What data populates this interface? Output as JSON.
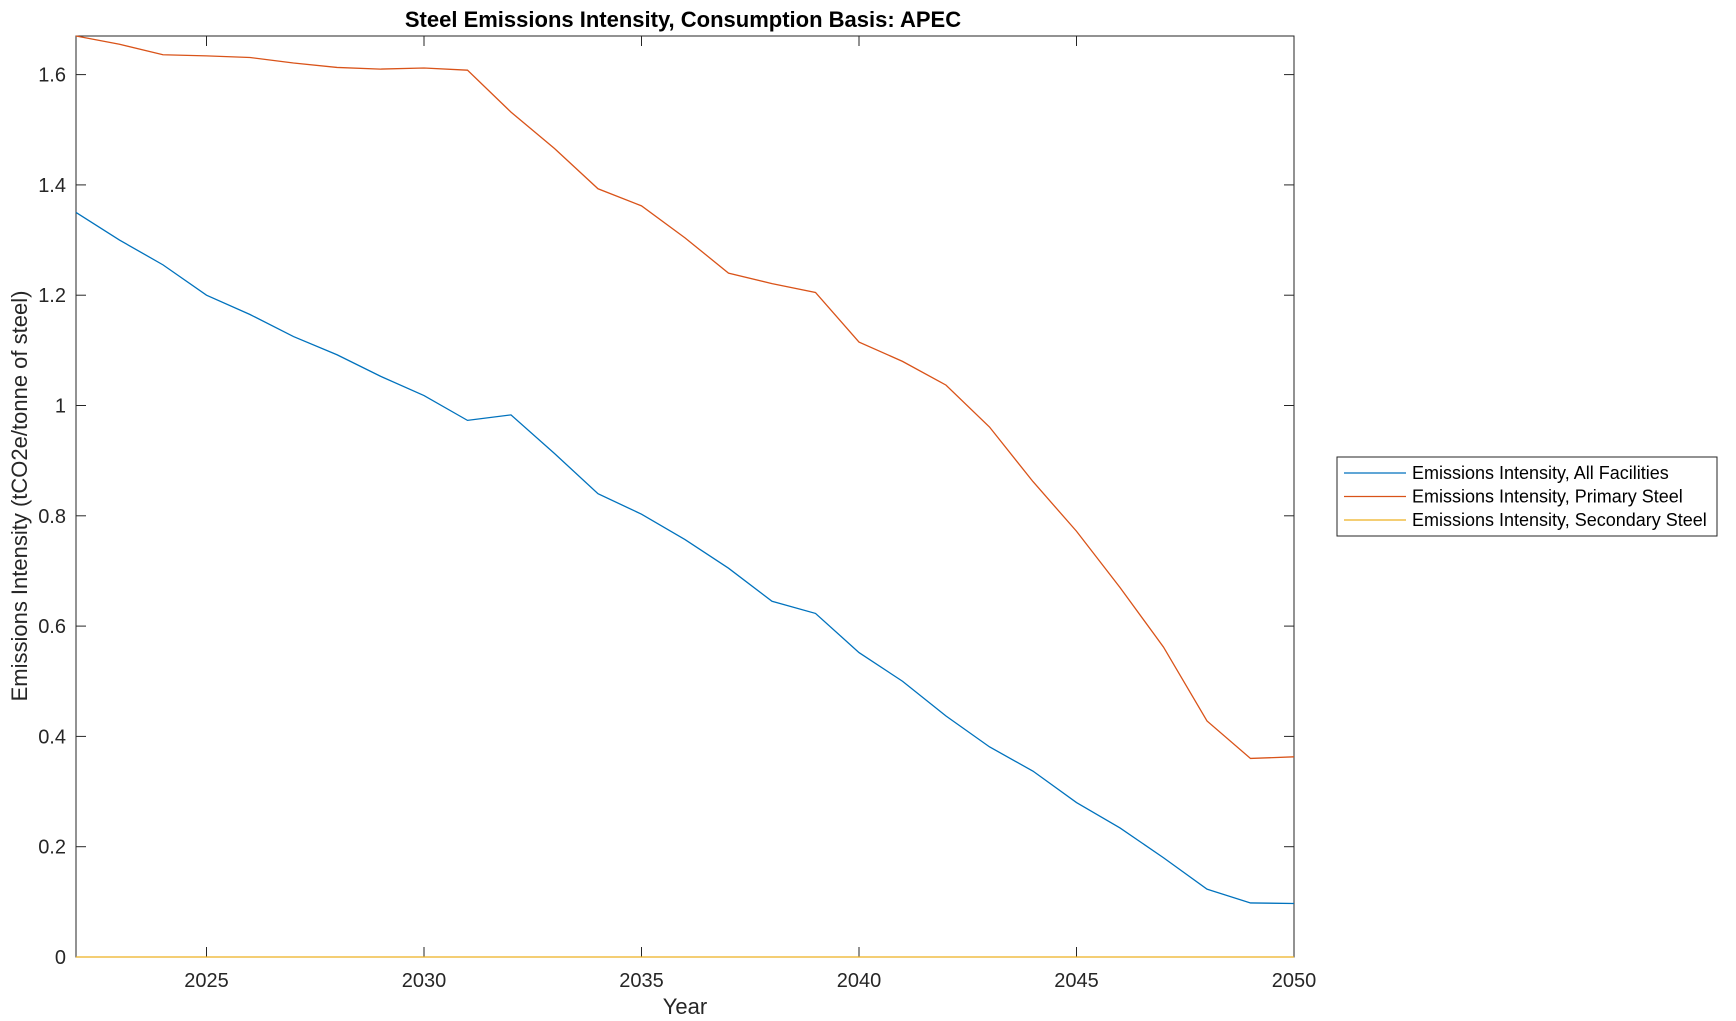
{
  "chart_data": {
    "type": "line",
    "title": "Steel Emissions Intensity, Consumption Basis: APEC",
    "xlabel": "Year",
    "ylabel": "Emissions Intensity (tCO2e/tonne of steel)",
    "xlim": [
      2022,
      2050
    ],
    "ylim": [
      0,
      1.67
    ],
    "xticks": [
      "2025",
      "2030",
      "2035",
      "2040",
      "2045",
      "2050"
    ],
    "yticks": [
      "0",
      "0.2",
      "0.4",
      "0.6",
      "0.8",
      "1",
      "1.2",
      "1.4",
      "1.6"
    ],
    "grid": false,
    "legend_position": "outside-right",
    "x": [
      2022,
      2023,
      2024,
      2025,
      2026,
      2027,
      2028,
      2029,
      2030,
      2031,
      2032,
      2033,
      2034,
      2035,
      2036,
      2037,
      2038,
      2039,
      2040,
      2041,
      2042,
      2043,
      2044,
      2045,
      2046,
      2047,
      2048,
      2049,
      2050
    ],
    "series": [
      {
        "name": "Emissions Intensity, All Facilities",
        "color": "#0072BD",
        "values": [
          1.35,
          1.3,
          1.255,
          1.2,
          1.165,
          1.125,
          1.092,
          1.053,
          1.018,
          0.973,
          0.983,
          0.913,
          0.84,
          0.803,
          0.757,
          0.705,
          0.645,
          0.623,
          0.552,
          0.5,
          0.437,
          0.381,
          0.337,
          0.28,
          0.234,
          0.18,
          0.123,
          0.098,
          0.097
        ]
      },
      {
        "name": "Emissions Intensity, Primary Steel",
        "color": "#D95319",
        "values": [
          1.67,
          1.655,
          1.636,
          1.634,
          1.631,
          1.621,
          1.613,
          1.61,
          1.612,
          1.608,
          1.532,
          1.466,
          1.393,
          1.362,
          1.304,
          1.24,
          1.221,
          1.205,
          1.115,
          1.08,
          1.037,
          0.961,
          0.862,
          0.772,
          0.67,
          0.562,
          0.428,
          0.36,
          0.363
        ]
      },
      {
        "name": "Emissions Intensity, Secondary Steel",
        "color": "#EDB120",
        "values": [
          0,
          0,
          0,
          0,
          0,
          0,
          0,
          0,
          0,
          0,
          0,
          0,
          0,
          0,
          0,
          0,
          0,
          0,
          0,
          0,
          0,
          0,
          0,
          0,
          0,
          0,
          0,
          0,
          0
        ]
      }
    ]
  }
}
